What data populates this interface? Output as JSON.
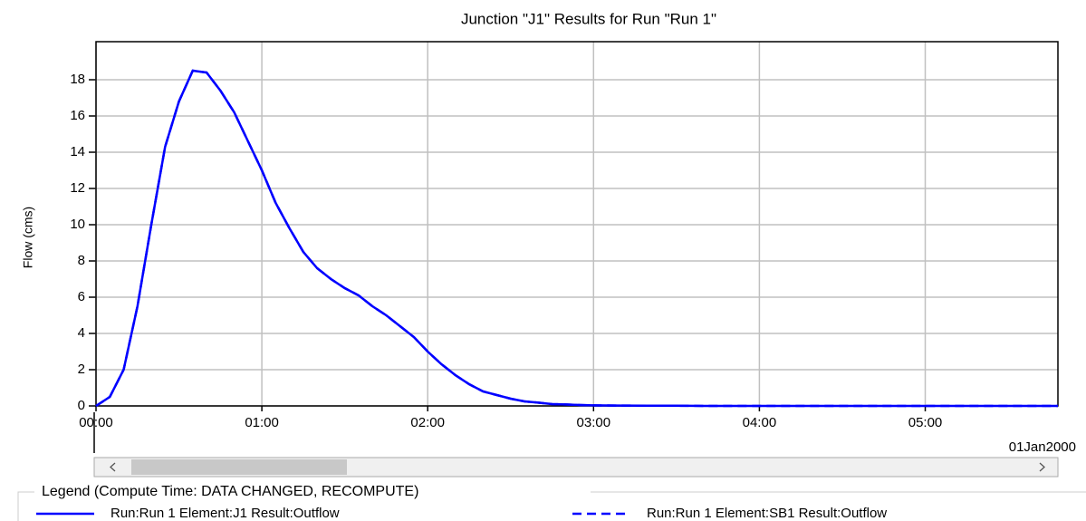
{
  "chart_data": {
    "type": "line",
    "title": "Junction \"J1\" Results for Run \"Run 1\"",
    "y_label": "Flow (cms)",
    "date_label": "01Jan2000",
    "legend_title": "Legend (Compute Time: DATA CHANGED, RECOMPUTE)",
    "x": [
      0,
      5,
      10,
      15,
      20,
      25,
      30,
      35,
      40,
      45,
      50,
      55,
      60,
      65,
      70,
      75,
      80,
      85,
      90,
      95,
      100,
      105,
      110,
      115,
      120,
      125,
      130,
      135,
      140,
      145,
      150,
      155,
      160,
      165,
      170,
      175,
      180,
      190,
      200,
      210,
      220,
      240,
      260,
      280,
      300,
      320,
      348
    ],
    "series": [
      {
        "name": "Run:Run 1 Element:J1 Result:Outflow",
        "color": "#0000ff",
        "dash": false,
        "values": [
          0,
          0.5,
          2,
          5.5,
          10,
          14.3,
          16.8,
          18.5,
          18.4,
          17.4,
          16.2,
          14.6,
          13,
          11.2,
          9.8,
          8.5,
          7.6,
          7,
          6.5,
          6.1,
          5.5,
          5,
          4.4,
          3.8,
          3,
          2.3,
          1.7,
          1.2,
          0.8,
          0.6,
          0.4,
          0.25,
          0.18,
          0.1,
          0.08,
          0.05,
          0.03,
          0.02,
          0.01,
          0.01,
          0,
          0,
          0,
          0,
          0,
          0,
          0
        ]
      },
      {
        "name": "Run:Run 1 Element:SB1 Result:Outflow",
        "color": "#0000ff",
        "dash": true,
        "values": [
          0,
          0.5,
          2,
          5.5,
          10,
          14.3,
          16.8,
          18.5,
          18.4,
          17.4,
          16.2,
          14.6,
          13,
          11.2,
          9.8,
          8.5,
          7.6,
          7,
          6.5,
          6.1,
          5.5,
          5,
          4.4,
          3.8,
          3,
          2.3,
          1.7,
          1.2,
          0.8,
          0.6,
          0.4,
          0.25,
          0.18,
          0.1,
          0.08,
          0.05,
          0.03,
          0.02,
          0.01,
          0.01,
          0,
          0,
          0,
          0,
          0,
          0,
          0
        ]
      }
    ],
    "xlim": [
      0,
      348
    ],
    "xticks": [
      {
        "value": 0,
        "label": "00:00"
      },
      {
        "value": 60,
        "label": "01:00"
      },
      {
        "value": 120,
        "label": "02:00"
      },
      {
        "value": 180,
        "label": "03:00"
      },
      {
        "value": 240,
        "label": "04:00"
      },
      {
        "value": 300,
        "label": "05:00"
      }
    ],
    "ylim": [
      0,
      20.1
    ],
    "yticks": [
      0,
      2,
      4,
      6,
      8,
      10,
      12,
      14,
      16,
      18
    ],
    "grid": true
  }
}
